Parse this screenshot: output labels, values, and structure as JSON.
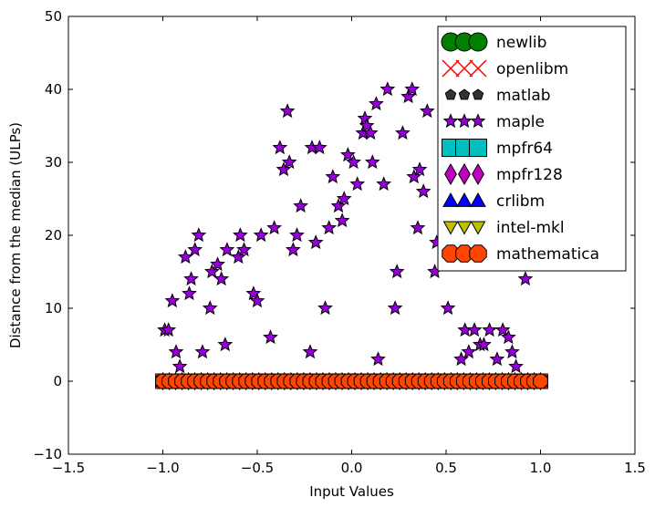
{
  "chart_data": {
    "type": "scatter",
    "xlabel": "Input Values",
    "ylabel": "Distance from the median (ULPs)",
    "xlim": [
      -1.5,
      1.5
    ],
    "ylim": [
      -10,
      50
    ],
    "xticks": [
      "−1.5",
      "−1.0",
      "−0.5",
      "0.0",
      "0.5",
      "1.0",
      "1.5"
    ],
    "xtick_values": [
      -1.5,
      -1.0,
      -0.5,
      0.0,
      0.5,
      1.0,
      1.5
    ],
    "yticks": [
      "−10",
      "0",
      "10",
      "20",
      "30",
      "40",
      "50"
    ],
    "ytick_values": [
      -10,
      0,
      10,
      20,
      30,
      40,
      50
    ],
    "grid": false,
    "legend_position": "top-right",
    "baseline_x_range": [
      -1.0,
      1.0
    ],
    "baseline_y": 0,
    "series": [
      {
        "name": "newlib",
        "marker": "circle",
        "color": "#008000",
        "label_text": "newlib"
      },
      {
        "name": "openlibm",
        "marker": "x",
        "color": "#ff0000",
        "label_text": "openlibm"
      },
      {
        "name": "matlab",
        "marker": "pentagon",
        "color": "#333333",
        "label_text": "matlab"
      },
      {
        "name": "maple",
        "marker": "star",
        "color": "#9400d3",
        "label_text": "maple",
        "points": [
          [
            -0.99,
            7
          ],
          [
            -0.97,
            7
          ],
          [
            -0.95,
            11
          ],
          [
            -0.93,
            4
          ],
          [
            -0.91,
            2
          ],
          [
            -0.88,
            17
          ],
          [
            -0.86,
            12
          ],
          [
            -0.85,
            14
          ],
          [
            -0.83,
            18
          ],
          [
            -0.81,
            20
          ],
          [
            -0.79,
            4
          ],
          [
            -0.75,
            10
          ],
          [
            -0.74,
            15
          ],
          [
            -0.71,
            16
          ],
          [
            -0.69,
            14
          ],
          [
            -0.67,
            5
          ],
          [
            -0.66,
            18
          ],
          [
            -0.6,
            17
          ],
          [
            -0.59,
            20
          ],
          [
            -0.57,
            18
          ],
          [
            -0.52,
            12
          ],
          [
            -0.5,
            11
          ],
          [
            -0.48,
            20
          ],
          [
            -0.43,
            6
          ],
          [
            -0.41,
            21
          ],
          [
            -0.38,
            32
          ],
          [
            -0.36,
            29
          ],
          [
            -0.34,
            37
          ],
          [
            -0.33,
            30
          ],
          [
            -0.31,
            18
          ],
          [
            -0.29,
            20
          ],
          [
            -0.27,
            24
          ],
          [
            -0.22,
            4
          ],
          [
            -0.21,
            32
          ],
          [
            -0.19,
            19
          ],
          [
            -0.17,
            32
          ],
          [
            -0.14,
            10
          ],
          [
            -0.12,
            21
          ],
          [
            -0.1,
            28
          ],
          [
            -0.07,
            24
          ],
          [
            -0.05,
            22
          ],
          [
            -0.04,
            25
          ],
          [
            -0.02,
            31
          ],
          [
            0.01,
            30
          ],
          [
            0.03,
            27
          ],
          [
            0.06,
            34
          ],
          [
            0.07,
            36
          ],
          [
            0.08,
            35
          ],
          [
            0.1,
            34
          ],
          [
            0.11,
            30
          ],
          [
            0.13,
            38
          ],
          [
            0.14,
            3
          ],
          [
            0.17,
            27
          ],
          [
            0.19,
            40
          ],
          [
            0.23,
            10
          ],
          [
            0.24,
            15
          ],
          [
            0.27,
            34
          ],
          [
            0.3,
            39
          ],
          [
            0.32,
            40
          ],
          [
            0.33,
            28
          ],
          [
            0.35,
            21
          ],
          [
            0.36,
            29
          ],
          [
            0.38,
            26
          ],
          [
            0.4,
            37
          ],
          [
            0.44,
            15
          ],
          [
            0.45,
            19
          ],
          [
            0.51,
            10
          ],
          [
            0.58,
            3
          ],
          [
            0.6,
            7
          ],
          [
            0.62,
            4
          ],
          [
            0.65,
            7
          ],
          [
            0.68,
            5
          ],
          [
            0.7,
            5
          ],
          [
            0.73,
            7
          ],
          [
            0.77,
            3
          ],
          [
            0.8,
            7
          ],
          [
            0.83,
            6
          ],
          [
            0.85,
            4
          ],
          [
            0.87,
            2
          ],
          [
            0.92,
            14
          ]
        ]
      },
      {
        "name": "mpfr64",
        "marker": "square",
        "color": "#00bfbf",
        "label_text": "mpfr64"
      },
      {
        "name": "mpfr128",
        "marker": "diamond",
        "color": "#bf00bf",
        "label_text": "mpfr128"
      },
      {
        "name": "crlibm",
        "marker": "triangle-up",
        "color": "#0000ff",
        "label_text": "crlibm"
      },
      {
        "name": "intel-mkl",
        "marker": "triangle-down",
        "color": "#bfbf00",
        "label_text": "intel-mkl"
      },
      {
        "name": "mathematica",
        "marker": "octagon",
        "color": "#ff4500",
        "label_text": "mathematica"
      }
    ]
  }
}
